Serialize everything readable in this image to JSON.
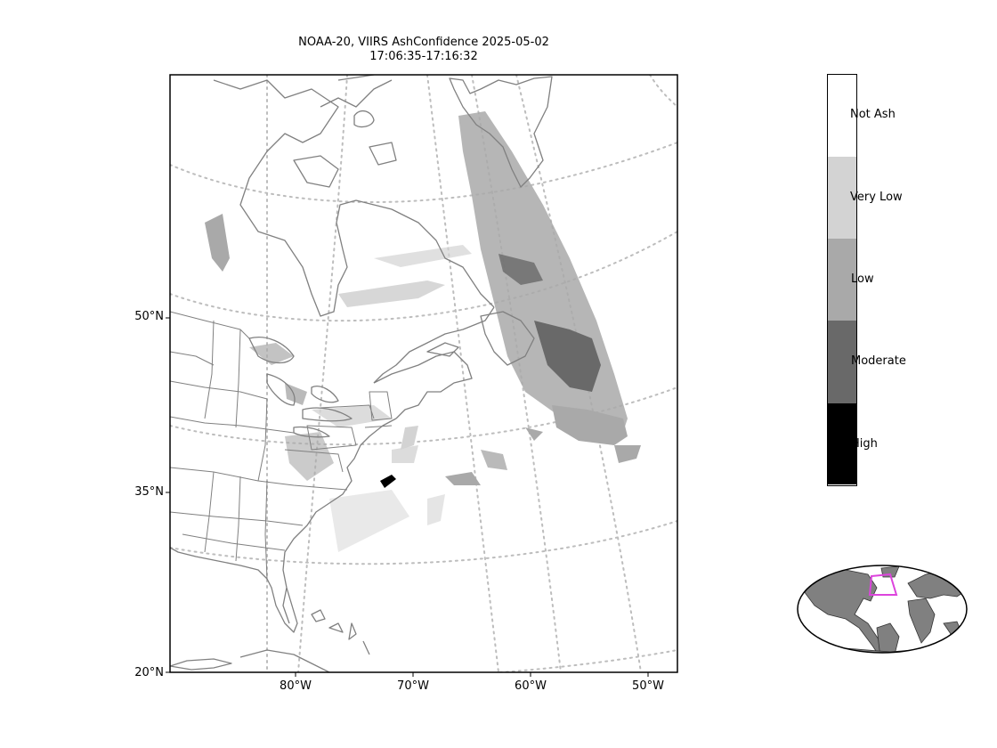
{
  "title": {
    "line1": "NOAA-20, VIIRS AshConfidence 2025-05-02",
    "line2": "17:06:35-17:16:32"
  },
  "map": {
    "latitude_labels": [
      "50°N",
      "35°N",
      "20°N"
    ],
    "longitude_labels": [
      "80°W",
      "70°W",
      "60°W",
      "50°W"
    ],
    "coastline_color": "#808080",
    "graticule_color": "#bdbdbd"
  },
  "colorbar": {
    "categories": [
      {
        "label": "Not Ash",
        "color": "#ffffff"
      },
      {
        "label": "Very Low",
        "color": "#d3d3d3"
      },
      {
        "label": "Low",
        "color": "#a9a9a9"
      },
      {
        "label": "Moderate",
        "color": "#696969"
      },
      {
        "label": "High",
        "color": "#000000"
      }
    ]
  },
  "inset": {
    "land_color": "#808080",
    "highlight_color": "#dd44dd"
  }
}
